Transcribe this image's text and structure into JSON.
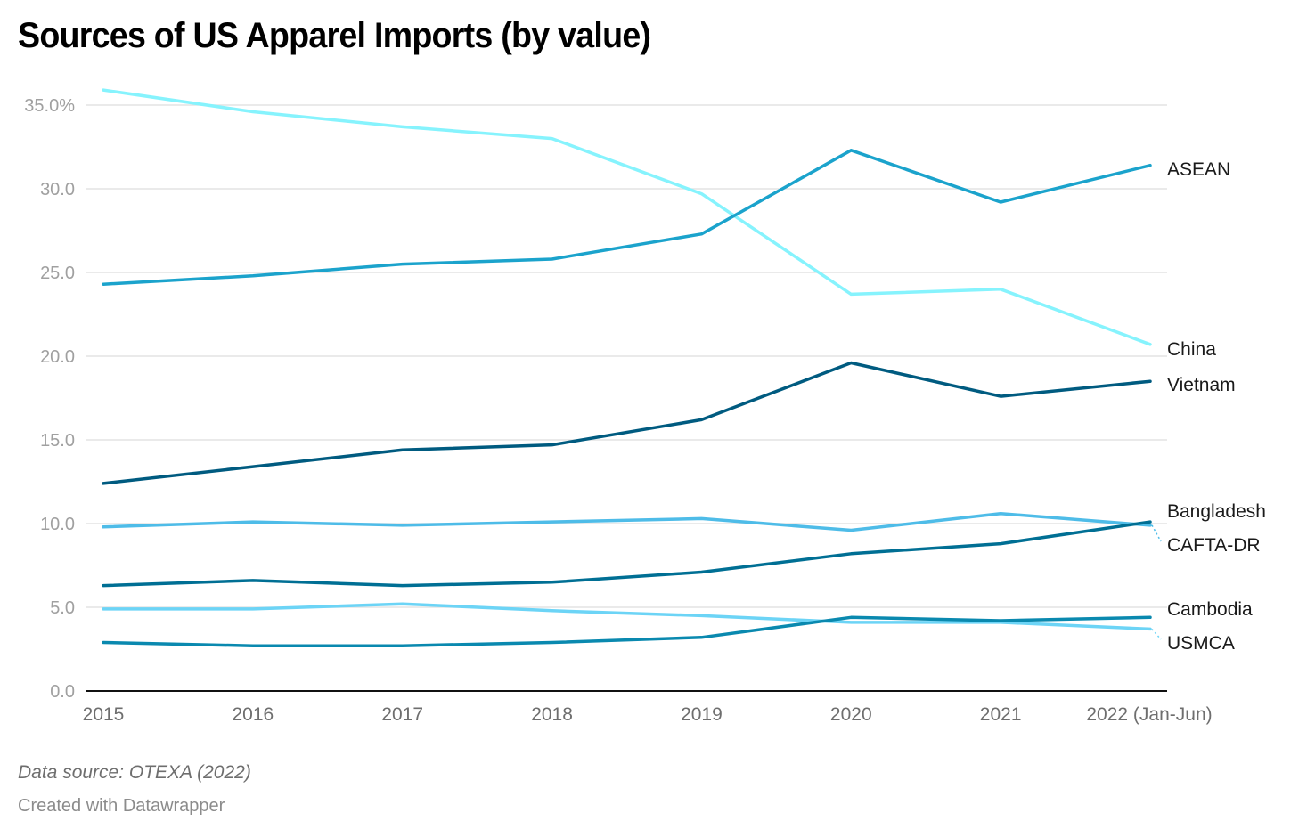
{
  "chart_data": {
    "type": "line",
    "title": "Sources of US Apparel Imports (by value)",
    "xlabel": "",
    "ylabel": "",
    "x": [
      "2015",
      "2016",
      "2017",
      "2018",
      "2019",
      "2020",
      "2021",
      "2022 (Jan-Jun)"
    ],
    "ylim": [
      0,
      37
    ],
    "yticks": [
      0,
      5,
      10,
      15,
      20,
      25,
      30,
      35
    ],
    "ytick_labels": [
      "0.0",
      "5.0",
      "10.0",
      "15.0",
      "20.0",
      "25.0",
      "30.0",
      "35.0%"
    ],
    "grid": true,
    "legend": "direct labels at right end of lines",
    "series": [
      {
        "name": "China",
        "color": "#86f3fd",
        "values": [
          35.9,
          34.6,
          33.7,
          33.0,
          29.7,
          23.7,
          24.0,
          20.7
        ]
      },
      {
        "name": "ASEAN",
        "color": "#1ba3cc",
        "values": [
          24.3,
          24.8,
          25.5,
          25.8,
          27.3,
          32.3,
          29.2,
          31.4
        ]
      },
      {
        "name": "Vietnam",
        "color": "#005b80",
        "values": [
          12.4,
          13.4,
          14.4,
          14.7,
          16.2,
          19.6,
          17.6,
          18.5
        ]
      },
      {
        "name": "CAFTA-DR",
        "color": "#4ebce8",
        "values": [
          9.8,
          10.1,
          9.9,
          10.1,
          10.3,
          9.6,
          10.6,
          9.9
        ]
      },
      {
        "name": "Bangladesh",
        "color": "#006f94",
        "values": [
          6.3,
          6.6,
          6.3,
          6.5,
          7.1,
          8.2,
          8.8,
          10.1
        ]
      },
      {
        "name": "USMCA",
        "color": "#6cd4f6",
        "values": [
          4.9,
          4.9,
          5.2,
          4.8,
          4.5,
          4.1,
          4.1,
          3.7
        ]
      },
      {
        "name": "Cambodia",
        "color": "#0a89af",
        "values": [
          2.9,
          2.7,
          2.7,
          2.9,
          3.2,
          4.4,
          4.2,
          4.4
        ]
      }
    ]
  },
  "footer": {
    "source": "Data source: OTEXA (2022)",
    "credit": "Created with Datawrapper"
  }
}
